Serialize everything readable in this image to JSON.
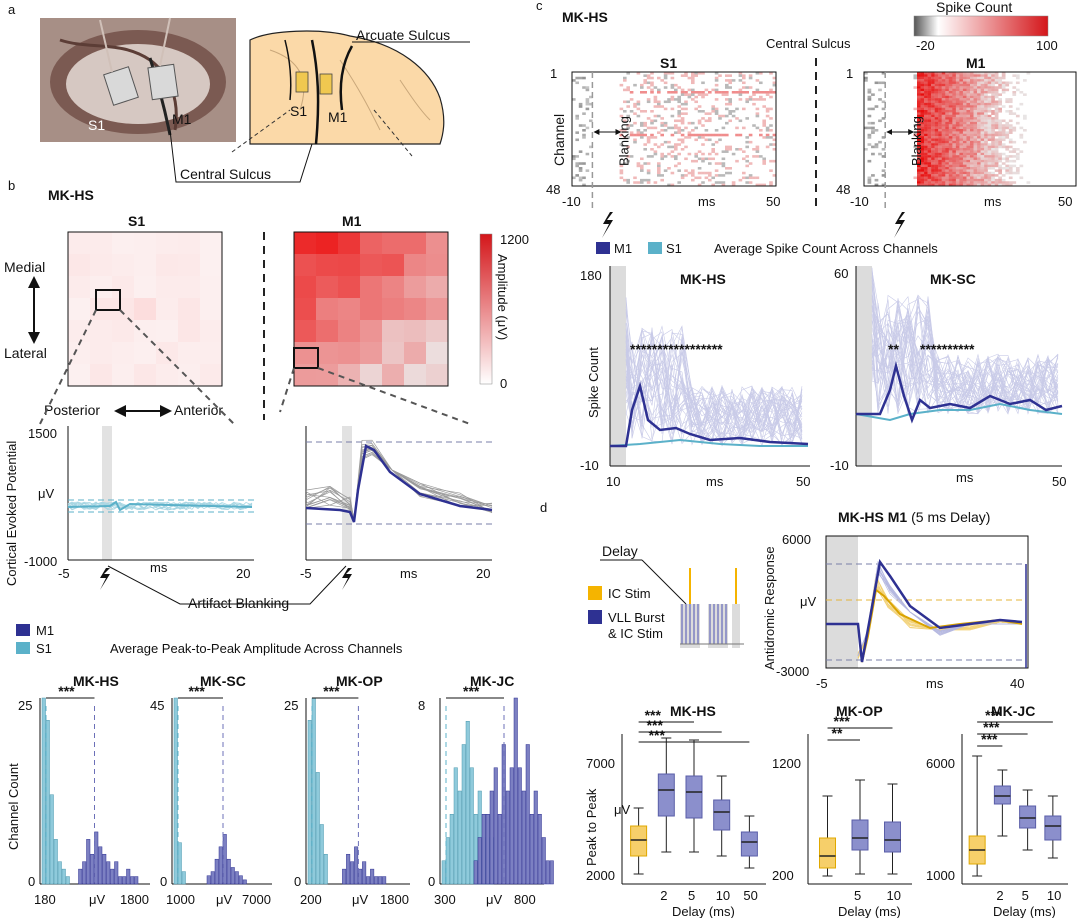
{
  "panels": {
    "a": "a",
    "b": "b",
    "c": "c",
    "d": "d"
  },
  "panel_a": {
    "arcuate_sulcus": "Arcuate Sulcus",
    "central_sulcus": "Central Sulcus",
    "s1": "S1",
    "m1": "M1"
  },
  "panel_b": {
    "subject": "MK-HS",
    "s1_title": "S1",
    "m1_title": "M1",
    "medial": "Medial",
    "lateral": "Lateral",
    "posterior": "Posterior",
    "anterior": "Anterior",
    "colorbar_max": "1200",
    "colorbar_min": "0",
    "colorbar_label": "Amplitude (μV)",
    "cep_ylabel": "Cortical Evoked Potential",
    "cep_ymax": "1500",
    "cep_ymin": "-1000",
    "cep_unit": "μV",
    "x_left_min": "-5",
    "x_left_max": "20",
    "x_right_min": "-5",
    "x_right_max": "20",
    "xunit": "ms",
    "artifact_blanking": "Artifact Blanking",
    "legend_m1": "M1",
    "legend_s1": "S1",
    "avg_title": "Average Peak-to-Peak Amplitude Across Channels",
    "hist_ylabel": "Channel Count",
    "hist_unit": "μV",
    "sig": "***"
  },
  "histograms": [
    {
      "title": "MK-HS",
      "ymax": "25",
      "ticks": [
        "180",
        "1800"
      ],
      "s1": [
        25,
        22,
        12,
        6,
        3,
        2,
        1
      ],
      "m1": [
        2,
        3,
        6,
        4,
        7,
        5,
        4,
        3,
        2,
        3,
        1,
        1,
        2,
        1,
        1
      ]
    },
    {
      "title": "MK-SC",
      "ymax": "45",
      "ticks": [
        "1000",
        "7000"
      ],
      "s1": [
        45,
        10,
        3
      ],
      "m1": [
        2,
        3,
        6,
        9,
        12,
        6,
        4,
        3,
        2,
        1
      ]
    },
    {
      "title": "MK-OP",
      "ymax": "25",
      "ticks": [
        "200",
        "1800"
      ],
      "s1": [
        22,
        25,
        15,
        8,
        4
      ],
      "m1": [
        2,
        4,
        3,
        5,
        2,
        3,
        1,
        2,
        1,
        1,
        1
      ]
    },
    {
      "title": "MK-JC",
      "ymax": "8",
      "ticks": [
        "300",
        "800"
      ],
      "s1": [
        1,
        2,
        3,
        5,
        4,
        6,
        7,
        5,
        3,
        4,
        2,
        3,
        2
      ],
      "m1": [
        1,
        2,
        3,
        3,
        4,
        5,
        3,
        6,
        4,
        5,
        8,
        5,
        4,
        6,
        3,
        4,
        3,
        2,
        1,
        1
      ]
    }
  ],
  "panel_c": {
    "subject": "MK-HS",
    "cbar_title": "Spike Count",
    "cbar_min": "-20",
    "cbar_max": "100",
    "central_sulcus": "Central Sulcus",
    "s1_title": "S1",
    "m1_title": "M1",
    "channel": "Channel",
    "ch_first": "1",
    "ch_last": "48",
    "blanking": "Blanking",
    "x_min": "-10",
    "x_max": "50",
    "xunit": "ms",
    "legend_m1": "M1",
    "legend_s1": "S1",
    "avg_title": "Average Spike Count Across Channels",
    "hs_title": "MK-HS",
    "sc_title": "MK-SC",
    "ylabel": "Spike Count",
    "hs_ymax": "180",
    "hs_ymin": "-10",
    "sc_ymax": "60",
    "sc_ymin": "-10",
    "lx_min": "10",
    "lx_max": "50",
    "hs_stars": "*****************",
    "sc_stars_1": "**",
    "sc_stars_2": "**********"
  },
  "panel_d": {
    "delay": "Delay",
    "ic_stim": "IC Stim",
    "vll_1": "VLL Burst",
    "vll_2": "& IC Stim",
    "title_main": "MK-HS M1",
    "title_sub": " (5 ms Delay)",
    "ylabel": "Antidromic Response",
    "ymax": "6000",
    "ymin": "-3000",
    "yunit": "μV",
    "x_min": "-5",
    "x_max": "40",
    "xunit": "ms",
    "box_ylabel": "Peak to Peak",
    "box_unit": "μV",
    "delay_label": "Delay (ms)",
    "sig3": "***",
    "sig2": "**"
  },
  "boxplots": [
    {
      "title": "MK-HS",
      "ymax": "7000",
      "ymin": "2000",
      "ticks": [
        "2",
        "5",
        "10",
        "50"
      ]
    },
    {
      "title": "MK-OP",
      "ymax": "1200",
      "ymin": "200",
      "ticks": [
        "5",
        "10"
      ]
    },
    {
      "title": "MK-JC",
      "ymax": "6000",
      "ymin": "1000",
      "ticks": [
        "2",
        "5",
        "10"
      ]
    }
  ],
  "colors": {
    "m1": "#2e3192",
    "s1": "#5bb1c9",
    "heat": "#e0201e",
    "ic_stim": "#f5b400",
    "box": "#8b8fcc",
    "box_yellow": "#f6cf6a"
  }
}
